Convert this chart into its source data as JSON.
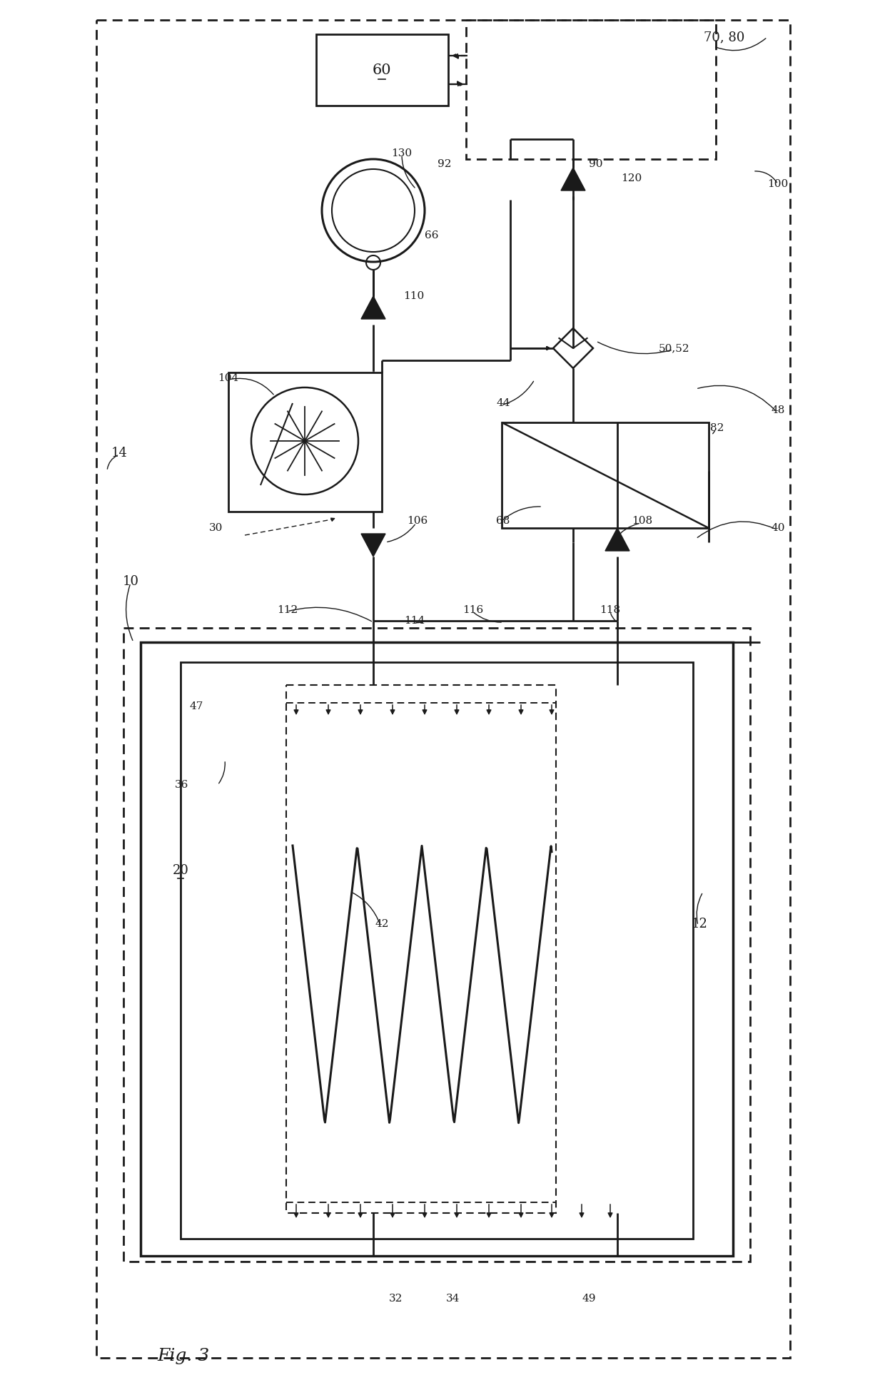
{
  "bg": "#ffffff",
  "lc": "#1a1a1a",
  "fig_label": "Fig. 3",
  "labels": [
    [
      "10",
      78,
      815,
      13
    ],
    [
      "12",
      875,
      1295,
      13
    ],
    [
      "14",
      62,
      635,
      13
    ],
    [
      "20",
      148,
      1220,
      13
    ],
    [
      "30",
      198,
      740,
      11
    ],
    [
      "32",
      450,
      1820,
      11
    ],
    [
      "34",
      530,
      1820,
      11
    ],
    [
      "36",
      150,
      1100,
      11
    ],
    [
      "40",
      985,
      740,
      11
    ],
    [
      "42",
      430,
      1295,
      11
    ],
    [
      "44",
      600,
      565,
      11
    ],
    [
      "47",
      170,
      990,
      11
    ],
    [
      "48",
      985,
      575,
      11
    ],
    [
      "49",
      720,
      1820,
      11
    ],
    [
      "50,52",
      840,
      488,
      11
    ],
    [
      "66",
      500,
      330,
      11
    ],
    [
      "68",
      600,
      730,
      11
    ],
    [
      "70, 80",
      910,
      52,
      13
    ],
    [
      "82",
      900,
      600,
      11
    ],
    [
      "90",
      730,
      230,
      11
    ],
    [
      "92",
      518,
      230,
      11
    ],
    [
      "100",
      985,
      258,
      11
    ],
    [
      "104",
      215,
      530,
      11
    ],
    [
      "106",
      480,
      730,
      11
    ],
    [
      "108",
      795,
      730,
      11
    ],
    [
      "110",
      475,
      415,
      11
    ],
    [
      "112",
      298,
      855,
      11
    ],
    [
      "114",
      476,
      870,
      11
    ],
    [
      "116",
      558,
      855,
      11
    ],
    [
      "118",
      750,
      855,
      11
    ],
    [
      "120",
      780,
      250,
      11
    ],
    [
      "130",
      458,
      215,
      11
    ]
  ]
}
